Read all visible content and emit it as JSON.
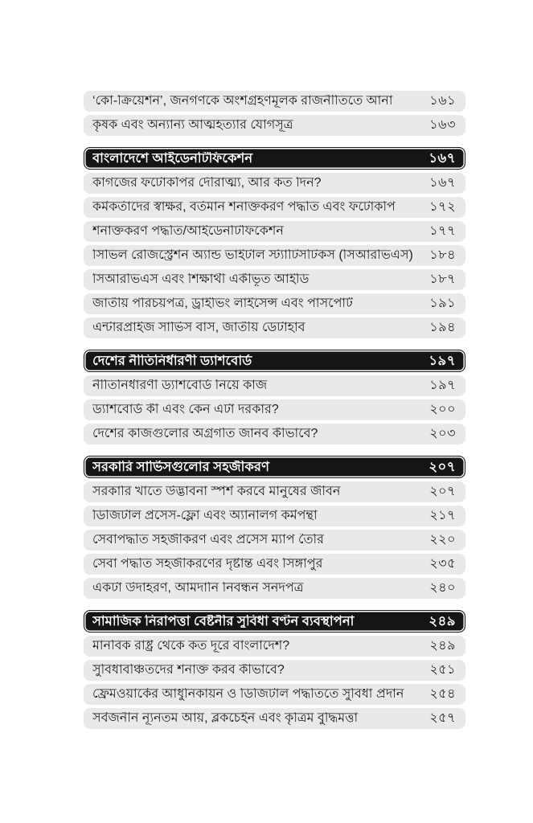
{
  "document": {
    "kind": "book-table-of-contents",
    "language": "Bengali"
  },
  "colors": {
    "page_background": "#ffffff",
    "entry_background": "#e9e9e9",
    "entry_text": "#1f1f1f",
    "section_background": "#151515",
    "section_text": "#ffffff"
  },
  "toc": {
    "items": [
      {
        "type": "entry",
        "label": "‘কো-ক্রিয়েশন’, জনগণকে অংশগ্রহণমূলক রাজনীতিতে আনা",
        "page": "১৬১"
      },
      {
        "type": "entry",
        "label": "কৃষক এবং অন্যান্য আত্মহত্যার যোগসূত্র",
        "page": "১৬৩"
      },
      {
        "type": "section",
        "label": "বাংলাদেশে আইডেনটিফিকেশন",
        "page": "১৬৭"
      },
      {
        "type": "entry",
        "label": "কাগজের ফটোকপির দৌরাত্ম্য, আর কত দিন?",
        "page": "১৬৭"
      },
      {
        "type": "entry",
        "label": "কর্মকর্তাদের স্বাক্ষর, বর্তমান শনাক্তকরণ পদ্ধতি এবং ফটোকপি",
        "page": "১৭২"
      },
      {
        "type": "entry",
        "label": "শনাক্তকরণ পদ্ধতি/আইডেনটিফিকেশন",
        "page": "১৭৭"
      },
      {
        "type": "entry",
        "label": "সিভিল রেজিস্ট্রেশন অ্যান্ড ভাইটাল স্ট্যাটিসটিকস (সিআরভিএস)",
        "page": "১৮৪"
      },
      {
        "type": "entry",
        "label": "সিআরভিএস এবং শিক্ষার্থী একীভূত আইডি",
        "page": "১৮৭"
      },
      {
        "type": "entry",
        "label": "জাতীয় পরিচয়পত্র, ড্রাইভিং লাইসেন্স এবং পাসপোর্ট",
        "page": "১৯১"
      },
      {
        "type": "entry",
        "label": "এন্টারপ্রাইজ সার্ভিস বাস, জাতীয় ডেটাহাব",
        "page": "১৯৪"
      },
      {
        "type": "section",
        "label": "দেশের নীতিনির্ধারণী ড্যাশবোর্ড",
        "page": "১৯৭"
      },
      {
        "type": "entry",
        "label": "নীতিনির্ধারণী ড্যাশবোর্ড নিয়ে কাজ",
        "page": "১৯৭"
      },
      {
        "type": "entry",
        "label": "ড্যাশবোর্ড কী এবং কেন এটা দরকার?",
        "page": "২০০"
      },
      {
        "type": "entry",
        "label": "দেশের কাজগুলোর অগ্রগতি জানব কীভাবে?",
        "page": "২০৩"
      },
      {
        "type": "section",
        "label": "সরকারি সার্ভিসগুলোর সহজীকরণ",
        "page": "২০৭"
      },
      {
        "type": "entry",
        "label": "সরকারি খাতে উদ্ভাবনা স্পর্শ করবে মানুষের জীবন",
        "page": "২০৭"
      },
      {
        "type": "entry",
        "label": "ডিজিটাল প্রসেস-ফ্লো এবং অ্যানালগ কর্মপন্থা",
        "page": "২১৭"
      },
      {
        "type": "entry",
        "label": "সেবাপদ্ধতি সহজীকরণ এবং প্রসেস ম্যাপ তৈরি",
        "page": "২২০"
      },
      {
        "type": "entry",
        "label": "সেবা পদ্ধতি সহজীকরণের দৃষ্টান্ত এবং সিঙ্গাপুর",
        "page": "২৩৫"
      },
      {
        "type": "entry",
        "label": "একটা উদাহরণ, আমদানি নিবন্ধন সনদপত্র",
        "page": "২৪০"
      },
      {
        "type": "section",
        "label": "সামাজিক নিরাপত্তা বেষ্টনীর সুবিধা বণ্টন ব্যবস্থাপনা",
        "page": "২৪৯"
      },
      {
        "type": "entry",
        "label": "মানবিক রাষ্ট্র থেকে কত দূরে বাংলাদেশ?",
        "page": "২৪৯"
      },
      {
        "type": "entry",
        "label": "সুবিধাবঞ্চিতদের শনাক্ত করব কীভাবে?",
        "page": "২৫১"
      },
      {
        "type": "entry",
        "label": "ফ্রেমওয়ার্কের আধুনিকায়ন ও ডিজিটাল পদ্ধতিতে সুবিধা প্রদান",
        "page": "২৫৪"
      },
      {
        "type": "entry",
        "label": "সর্বজনীন ন্যূনতম আয়, ব্লকচেইন এবং কৃত্রিম বুদ্ধিমত্তা",
        "page": "২৫৭"
      }
    ]
  }
}
